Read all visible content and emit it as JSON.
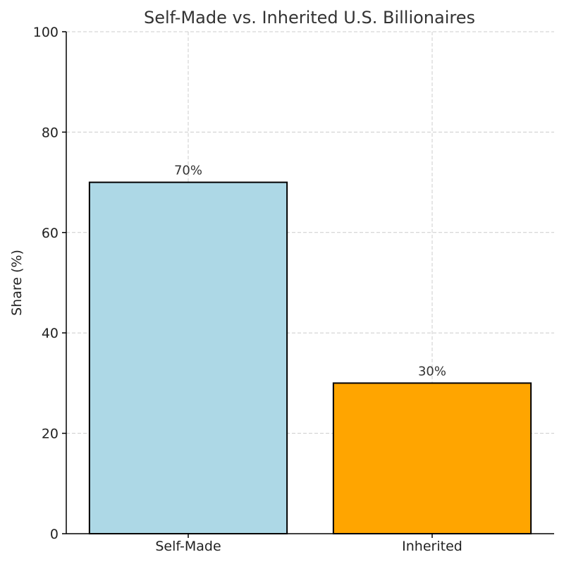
{
  "chart_data": {
    "type": "bar",
    "title": "Self-Made vs. Inherited U.S. Billionaires",
    "xlabel": "",
    "ylabel": "Share (%)",
    "categories": [
      "Self-Made",
      "Inherited"
    ],
    "values": [
      70,
      30
    ],
    "data_labels": [
      "70%",
      "30%"
    ],
    "colors": [
      "#add8e6",
      "#ffa500"
    ],
    "ylim": [
      0,
      100
    ],
    "yticks": [
      0,
      20,
      40,
      60,
      80,
      100
    ],
    "grid": true
  }
}
